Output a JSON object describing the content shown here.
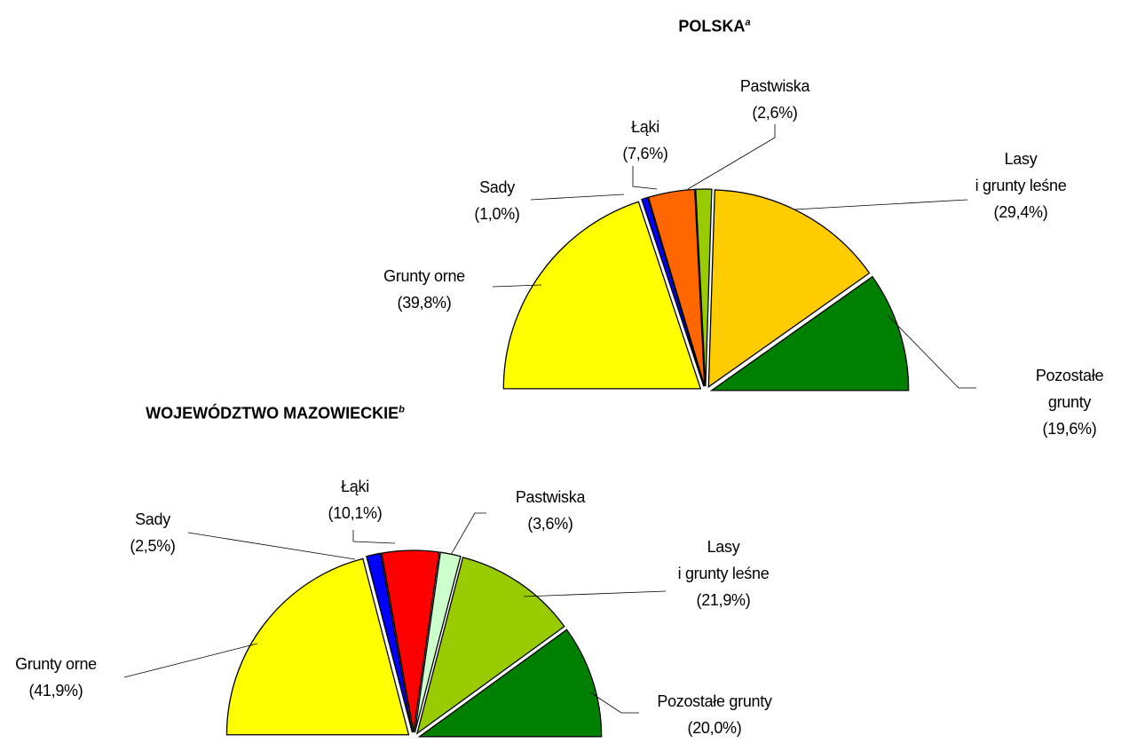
{
  "chart_data": [
    {
      "type": "pie",
      "half": true,
      "title": "POLSKA",
      "title_superscript": "a",
      "categories": [
        "Grunty orne",
        "Sady",
        "Łąki",
        "Pastwiska",
        "Lasy\ni grunty leśne",
        "Pozostałe grunty"
      ],
      "values": [
        39.8,
        1.0,
        7.6,
        2.6,
        29.4,
        19.6
      ],
      "value_labels": [
        "(39,8%)",
        "(1,0%)",
        "(7,6%)",
        "(2,6%)",
        "(29,4%)",
        "(19,6%)"
      ],
      "colors": [
        "#ffff00",
        "#0000ff",
        "#ff6600",
        "#99cc00",
        "#ffcc00",
        "#008000"
      ]
    },
    {
      "type": "pie",
      "half": true,
      "title": "WOJEWÓDZTWO MAZOWIECKIE",
      "title_superscript": "b",
      "categories": [
        "Grunty orne",
        "Sady",
        "Łąki",
        "Pastwiska",
        "Lasy\ni grunty leśne",
        "Pozostałe grunty"
      ],
      "values": [
        41.9,
        2.5,
        10.1,
        3.6,
        21.9,
        20.0
      ],
      "value_labels": [
        "(41,9%)",
        "(2,5%)",
        "(10,1%)",
        "(3,6%)",
        "(21,9%)",
        "(20,0%)"
      ],
      "colors": [
        "#ffff00",
        "#0000ff",
        "#ff0000",
        "#ccffcc",
        "#99cc00",
        "#008000"
      ]
    }
  ]
}
